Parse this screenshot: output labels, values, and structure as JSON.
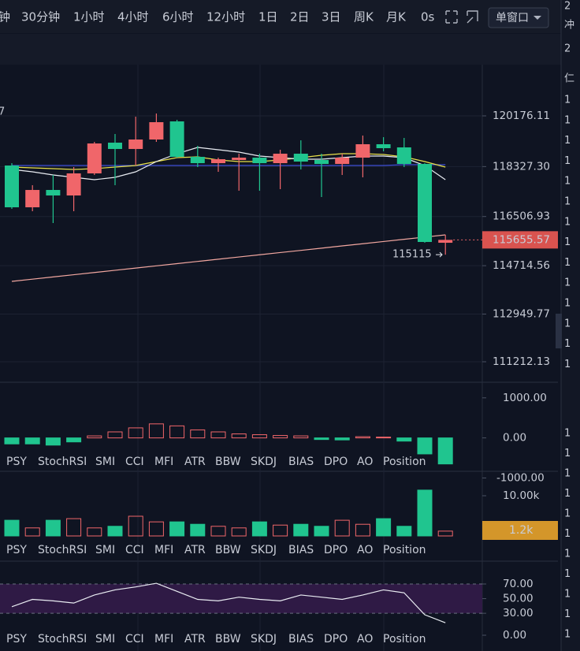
{
  "toolbar": {
    "intervals": [
      "钟",
      "30分钟",
      "1小时",
      "4小时",
      "6小时",
      "12小时",
      "1日",
      "2日",
      "3日",
      "周K",
      "月K",
      "0s"
    ],
    "active_interval": 3,
    "window_mode": "单窗口"
  },
  "chart_data": {
    "type": "candlestick",
    "annotation": "7",
    "colors": {
      "up": "#f0666a",
      "down": "#20c58f"
    },
    "ylim": [
      110465,
      122044
    ],
    "yticks": [
      120176.11,
      {
        "value": 118327.3,
        "label": "118327.30"
      },
      116506.93,
      114714.56,
      112949.77,
      111212.13
    ],
    "grid": true,
    "candles": [
      {
        "open": 118366,
        "high": 118452,
        "low": 116786,
        "close": 116843
      },
      {
        "open": 116843,
        "high": 117648,
        "low": 116700,
        "close": 117475
      },
      {
        "open": 117475,
        "high": 118021,
        "low": 116269,
        "close": 117274
      },
      {
        "open": 117274,
        "high": 118309,
        "low": 116700,
        "close": 118079
      },
      {
        "open": 118079,
        "high": 119228,
        "low": 118021,
        "close": 119170
      },
      {
        "open": 119199,
        "high": 119515,
        "low": 117648,
        "close": 118969
      },
      {
        "open": 118969,
        "high": 120147,
        "low": 118366,
        "close": 119314
      },
      {
        "open": 119314,
        "high": 120262,
        "low": 119228,
        "close": 119946
      },
      {
        "open": 119975,
        "high": 120032,
        "low": 118653,
        "close": 118682
      },
      {
        "open": 118682,
        "high": 119084,
        "low": 118309,
        "close": 118452
      },
      {
        "open": 118452,
        "high": 118653,
        "low": 118136,
        "close": 118596
      },
      {
        "open": 118567,
        "high": 118797,
        "low": 117447,
        "close": 118653
      },
      {
        "open": 118653,
        "high": 118797,
        "low": 117447,
        "close": 118452
      },
      {
        "open": 118452,
        "high": 118941,
        "low": 117504,
        "close": 118797
      },
      {
        "open": 118797,
        "high": 119285,
        "low": 118222,
        "close": 118510
      },
      {
        "open": 118567,
        "high": 118797,
        "low": 117217,
        "close": 118424
      },
      {
        "open": 118424,
        "high": 118797,
        "low": 118021,
        "close": 118653
      },
      {
        "open": 118653,
        "high": 119458,
        "low": 117935,
        "close": 119142
      },
      {
        "open": 119142,
        "high": 119400,
        "low": 118883,
        "close": 118998
      },
      {
        "open": 119027,
        "high": 119372,
        "low": 118309,
        "close": 118424
      },
      {
        "open": 118424,
        "high": 118452,
        "low": 115550,
        "close": 115579
      },
      {
        "open": 115550,
        "high": 115838,
        "low": 115115,
        "close": 115655.57
      }
    ],
    "series": [
      {
        "color": "#f2a7a0",
        "values": [
          114143,
          114224,
          114305,
          114385,
          114466,
          114547,
          114627,
          114708,
          114789,
          114870,
          114950,
          115031,
          115112,
          115193,
          115273,
          115354,
          115435,
          115515,
          115596,
          115677,
          115757,
          115838
        ]
      },
      {
        "color": "#3f4fd8",
        "values": [
          118366,
          118366,
          118366,
          118366,
          118366,
          118366,
          118366,
          118366,
          118366,
          118366,
          118366,
          118366,
          118366,
          118366,
          118366,
          118366,
          118366,
          118366,
          118366,
          118395,
          118395,
          118395
        ]
      },
      {
        "color": "#e8e04a",
        "values": [
          118309,
          118280,
          118251,
          118222,
          118251,
          118309,
          118366,
          118510,
          118653,
          118682,
          118567,
          118510,
          118510,
          118567,
          118653,
          118739,
          118797,
          118797,
          118768,
          118682,
          118510,
          118309
        ]
      },
      {
        "color": "#e9ecf2",
        "values": [
          118222,
          118136,
          118021,
          117935,
          117849,
          117935,
          118136,
          118510,
          118797,
          119027,
          118941,
          118854,
          118711,
          118653,
          118596,
          118596,
          118653,
          118711,
          118711,
          118653,
          118366,
          117849
        ]
      }
    ]
  },
  "indicators": {
    "tabs": [
      "PSY",
      "StochRSI",
      "SMI",
      "CCI",
      "MFI",
      "ATR",
      "BBW",
      "SKDJ",
      "BIAS",
      "DPO",
      "AO",
      "Position"
    ],
    "macd": {
      "ylim": [
        -775,
        1350
      ],
      "yticks": [
        {
          "value": 1000,
          "label": "1000.00"
        },
        {
          "value": 0,
          "label": "0.00"
        },
        {
          "value": -1000,
          "label": "-1000.00"
        }
      ],
      "values": [
        -150,
        -150,
        -180,
        -100,
        50,
        150,
        250,
        350,
        300,
        200,
        150,
        100,
        80,
        60,
        50,
        -40,
        -50,
        30,
        20,
        -80,
        -400,
        -650
      ]
    },
    "volume": {
      "ylim": [
        0,
        15686
      ],
      "yticks": [
        {
          "value": 10000,
          "label": "10.00k"
        }
      ],
      "values": [
        3900,
        2000,
        3900,
        4300,
        2000,
        2400,
        4900,
        3500,
        3500,
        2900,
        2400,
        2000,
        3500,
        2700,
        2900,
        2400,
        3900,
        2900,
        4300,
        2400,
        11400,
        1200
      ],
      "current_label": "1.2k"
    },
    "rsi": {
      "ylim": [
        0,
        98
      ],
      "yticks": [
        {
          "value": 70,
          "label": "70.00"
        },
        {
          "value": 50,
          "label": "50.00"
        },
        {
          "value": 30,
          "label": "30.00"
        },
        {
          "value": 0,
          "label": "0.00"
        }
      ],
      "band": [
        30,
        70
      ],
      "values": [
        39,
        49,
        47,
        44,
        55,
        62,
        66,
        71,
        60,
        49,
        47,
        52,
        49,
        47,
        55,
        52,
        49,
        55,
        62,
        58,
        28,
        17
      ]
    }
  },
  "right_panel": {
    "top": [
      "2",
      "冲",
      "2",
      "仁"
    ],
    "green": [
      "1",
      "1",
      "1",
      "1",
      "1",
      "1",
      "1",
      "1",
      "1",
      "1",
      "1",
      "1",
      "1",
      "1"
    ],
    "red": [
      "1",
      "1",
      "1",
      "1",
      "1",
      "1",
      "1",
      "1",
      "1",
      "1",
      "1"
    ]
  }
}
